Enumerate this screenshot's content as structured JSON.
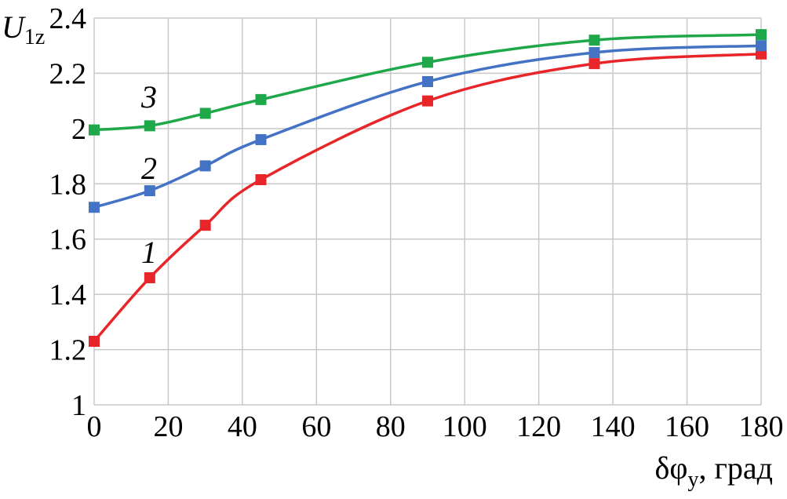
{
  "chart_data": {
    "type": "line",
    "xlabel": "δφ",
    "xlabel_sub": "y",
    "xlabel_unit": ", град",
    "ylabel": "U",
    "ylabel_sub": "1z",
    "xlim": [
      0,
      180
    ],
    "ylim": [
      1,
      2.4
    ],
    "xticks": [
      "0",
      "20",
      "40",
      "60",
      "80",
      "100",
      "120",
      "140",
      "160",
      "180"
    ],
    "yticks": [
      "1",
      "1.2",
      "1.4",
      "1.6",
      "1.8",
      "2",
      "2.2",
      "2.4"
    ],
    "grid": true,
    "legend": "none",
    "series": [
      {
        "label": "1",
        "color": "#e8262a",
        "x": [
          0,
          15,
          30,
          45,
          90,
          135,
          180
        ],
        "y": [
          1.23,
          1.46,
          1.65,
          1.815,
          2.1,
          2.235,
          2.27
        ]
      },
      {
        "label": "2",
        "color": "#4472c4",
        "x": [
          0,
          15,
          30,
          45,
          90,
          135,
          180
        ],
        "y": [
          1.715,
          1.775,
          1.865,
          1.96,
          2.17,
          2.275,
          2.3
        ]
      },
      {
        "label": "3",
        "color": "#1ea84a",
        "x": [
          0,
          15,
          30,
          45,
          90,
          135,
          180
        ],
        "y": [
          1.995,
          2.01,
          2.055,
          2.105,
          2.24,
          2.32,
          2.34
        ]
      }
    ]
  }
}
